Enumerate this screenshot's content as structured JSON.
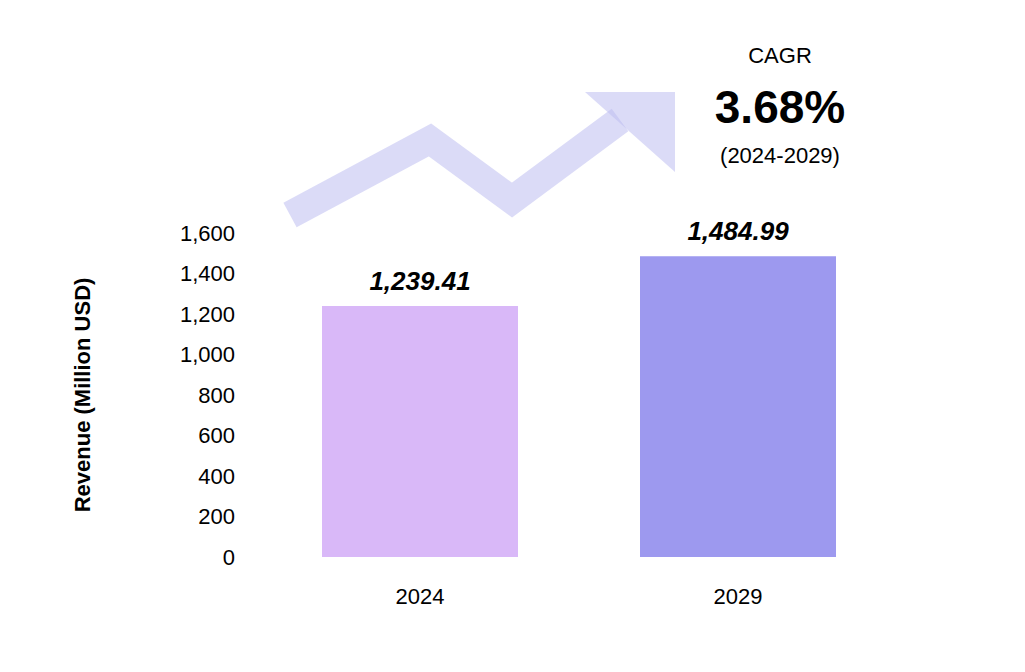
{
  "chart_data": {
    "type": "bar",
    "y_label": "Revenue (Million USD)",
    "categories": [
      "2024",
      "2029"
    ],
    "values": [
      1239.41,
      1484.99
    ],
    "value_labels": [
      "1,239.41",
      "1,484.99"
    ],
    "colors": [
      "#d9b8f8",
      "#9d99ef"
    ],
    "ylim": [
      0,
      1600
    ],
    "yticks": [
      0,
      200,
      400,
      600,
      800,
      {
        "value": 1000,
        "label": "1,000"
      },
      {
        "value": 1200,
        "label": "1,200"
      },
      {
        "value": 1400,
        "label": "1,400"
      },
      {
        "value": 1600,
        "label": "1,600"
      }
    ],
    "grid": false,
    "data_labels": true,
    "annotations": [
      "CAGR",
      "3.68%",
      "(2024-2029)"
    ]
  }
}
